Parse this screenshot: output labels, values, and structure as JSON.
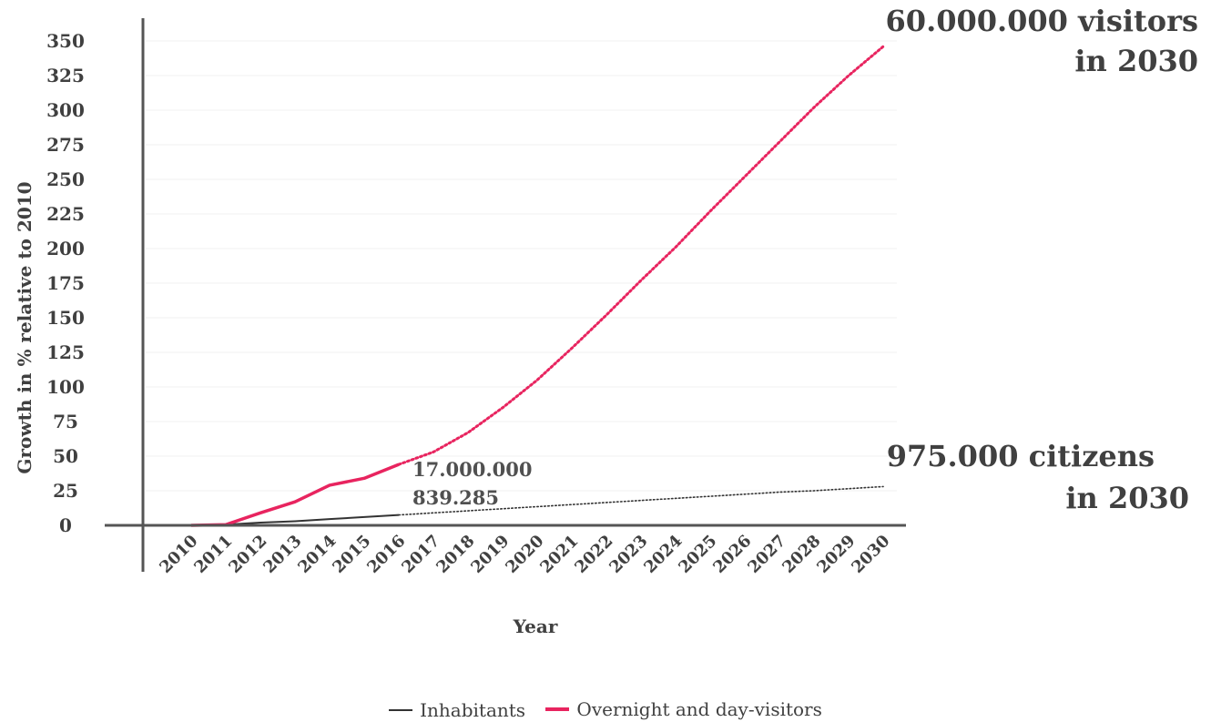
{
  "chart_data": {
    "type": "line",
    "xlabel": "Year",
    "ylabel": "Growth in % relative to 2010",
    "ylim": [
      0,
      350
    ],
    "yticks": [
      0,
      25,
      50,
      75,
      100,
      125,
      150,
      175,
      200,
      225,
      250,
      275,
      300,
      325,
      350
    ],
    "x": [
      "2010",
      "2011",
      "2012",
      "2013",
      "2014",
      "2015",
      "2016",
      "2017",
      "2018",
      "2019",
      "2020",
      "2021",
      "2022",
      "2023",
      "2024",
      "2025",
      "2026",
      "2027",
      "2028",
      "2029",
      "2030"
    ],
    "grid": true,
    "legend_position": "bottom",
    "series": [
      {
        "name": "Inhabitants",
        "color": "#333333",
        "values": [
          0,
          0.5,
          2,
          3,
          4.5,
          6,
          7.5,
          9,
          10.5,
          12,
          13.5,
          15,
          16.5,
          18,
          19.5,
          21,
          22.5,
          24,
          25,
          26.5,
          28
        ],
        "actual_until": "2016",
        "projected_from": "2016"
      },
      {
        "name": "Overnight and day-visitors",
        "color": "#e8245f",
        "values": [
          0,
          0.5,
          9,
          17,
          29,
          34,
          44,
          53,
          67,
          85,
          105,
          128,
          152,
          177,
          201,
          227,
          252,
          277,
          302,
          325,
          346
        ],
        "actual_until": "2016",
        "projected_from": "2016"
      }
    ],
    "annotations": {
      "visitors_2016": "17.000.000",
      "citizens_2016": "839.285",
      "visitors_2030_line1": "60.000.000 visitors",
      "visitors_2030_line2": "in 2030",
      "citizens_2030_line1": "975.000 citizens",
      "citizens_2030_line2": "in 2030"
    }
  },
  "legend": {
    "items": [
      {
        "label": "Inhabitants",
        "color": "#333333"
      },
      {
        "label": "Overnight and day-visitors",
        "color": "#e8245f"
      }
    ]
  }
}
